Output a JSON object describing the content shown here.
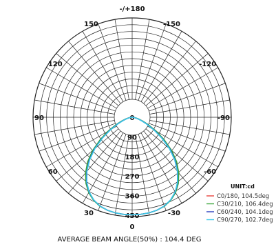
{
  "chart_data": {
    "type": "polar-line",
    "title": "",
    "unit_label": "UNIT:cd",
    "angle_labels": [
      "-/+180",
      "150",
      "120",
      "90",
      "60",
      "30",
      "0",
      "-30",
      "-60",
      "-90",
      "-120",
      "-150"
    ],
    "radial_ticks": [
      "0",
      "90",
      "180",
      "270",
      "360",
      "450"
    ],
    "radial_max": 450,
    "grid": true,
    "legend_position": "bottom-right",
    "series": [
      {
        "name": "C0/180, 104.5deg",
        "color": "#e8413c",
        "angles_deg": [
          -90,
          -85,
          -80,
          -75,
          -70,
          -65,
          -60,
          -55,
          -50,
          -45,
          -40,
          -35,
          -30,
          -25,
          -20,
          -15,
          -10,
          -5,
          0,
          5,
          10,
          15,
          20,
          25,
          30,
          35,
          40,
          45,
          50,
          55,
          60,
          65,
          70,
          75,
          80,
          85,
          90
        ],
        "values": [
          0,
          5,
          14,
          28,
          48,
          78,
          120,
          172,
          230,
          282,
          328,
          367,
          398,
          420,
          434,
          442,
          446,
          448,
          448,
          448,
          446,
          442,
          434,
          420,
          398,
          367,
          328,
          282,
          230,
          172,
          120,
          78,
          48,
          28,
          14,
          5,
          0
        ]
      },
      {
        "name": "C30/210, 106.4deg",
        "color": "#3aa63a",
        "angles_deg": [
          -90,
          -85,
          -80,
          -75,
          -70,
          -65,
          -60,
          -55,
          -50,
          -45,
          -40,
          -35,
          -30,
          -25,
          -20,
          -15,
          -10,
          -5,
          0,
          5,
          10,
          15,
          20,
          25,
          30,
          35,
          40,
          45,
          50,
          55,
          60,
          65,
          70,
          75,
          80,
          85,
          90
        ],
        "values": [
          0,
          6,
          16,
          31,
          52,
          84,
          128,
          180,
          238,
          290,
          334,
          371,
          400,
          421,
          435,
          442,
          446,
          448,
          448,
          448,
          446,
          442,
          435,
          421,
          400,
          371,
          334,
          290,
          238,
          180,
          128,
          84,
          52,
          31,
          16,
          6,
          0
        ]
      },
      {
        "name": "C60/240, 104.1deg",
        "color": "#2a3fbf",
        "angles_deg": [
          -90,
          -85,
          -80,
          -75,
          -70,
          -65,
          -60,
          -55,
          -50,
          -45,
          -40,
          -35,
          -30,
          -25,
          -20,
          -15,
          -10,
          -5,
          0,
          5,
          10,
          15,
          20,
          25,
          30,
          35,
          40,
          45,
          50,
          55,
          60,
          65,
          70,
          75,
          80,
          85,
          90
        ],
        "values": [
          0,
          5,
          13,
          27,
          47,
          76,
          118,
          170,
          228,
          280,
          326,
          366,
          397,
          419,
          434,
          442,
          446,
          448,
          448,
          448,
          446,
          442,
          434,
          419,
          397,
          366,
          326,
          280,
          228,
          170,
          118,
          76,
          47,
          27,
          13,
          5,
          0
        ]
      },
      {
        "name": "C90/270, 102.7deg",
        "color": "#3cc8e8",
        "angles_deg": [
          -90,
          -85,
          -80,
          -75,
          -70,
          -65,
          -60,
          -55,
          -50,
          -45,
          -40,
          -35,
          -30,
          -25,
          -20,
          -15,
          -10,
          -5,
          0,
          5,
          10,
          15,
          20,
          25,
          30,
          35,
          40,
          45,
          50,
          55,
          60,
          65,
          70,
          75,
          80,
          85,
          90
        ],
        "values": [
          0,
          4,
          12,
          25,
          44,
          72,
          114,
          166,
          224,
          277,
          324,
          364,
          396,
          419,
          434,
          442,
          446,
          448,
          448,
          448,
          446,
          442,
          434,
          419,
          396,
          364,
          324,
          277,
          224,
          166,
          114,
          72,
          44,
          25,
          12,
          4,
          0
        ]
      }
    ],
    "footer": "AVERAGE BEAM ANGLE(50%) : 104.4 DEG"
  }
}
